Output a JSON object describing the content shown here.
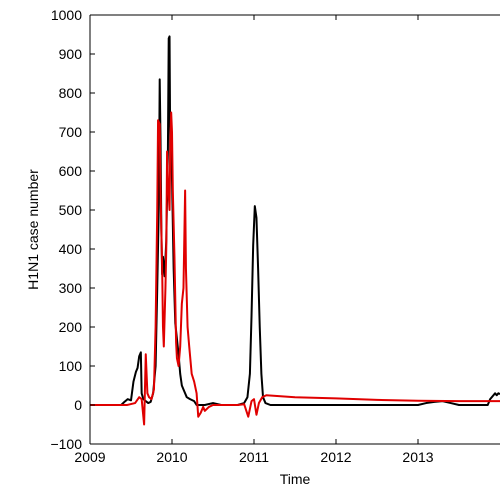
{
  "chart_data": {
    "type": "line",
    "title": "",
    "xlabel": "Time",
    "ylabel": "H1N1 case number",
    "xlim": [
      2009,
      2014
    ],
    "ylim": [
      -100,
      1000
    ],
    "x_ticks": [
      2009,
      2010,
      2011,
      2012,
      2013
    ],
    "y_ticks": [
      -100,
      0,
      100,
      200,
      300,
      400,
      500,
      600,
      700,
      800,
      900,
      1000
    ],
    "x_tick_labels": [
      "2009",
      "2010",
      "2011",
      "2012",
      "2013"
    ],
    "y_tick_labels": [
      "−100",
      "0",
      "100",
      "200",
      "300",
      "400",
      "500",
      "600",
      "700",
      "800",
      "900",
      "1000"
    ],
    "grid": false,
    "series": [
      {
        "color": "#000000",
        "points": [
          [
            2009.0,
            0
          ],
          [
            2009.38,
            0
          ],
          [
            2009.42,
            8
          ],
          [
            2009.46,
            15
          ],
          [
            2009.5,
            12
          ],
          [
            2009.53,
            60
          ],
          [
            2009.56,
            85
          ],
          [
            2009.58,
            95
          ],
          [
            2009.6,
            125
          ],
          [
            2009.62,
            135
          ],
          [
            2009.63,
            30
          ],
          [
            2009.65,
            15
          ],
          [
            2009.68,
            10
          ],
          [
            2009.71,
            5
          ],
          [
            2009.74,
            8
          ],
          [
            2009.77,
            30
          ],
          [
            2009.8,
            100
          ],
          [
            2009.82,
            300
          ],
          [
            2009.84,
            520
          ],
          [
            2009.85,
            835
          ],
          [
            2009.86,
            680
          ],
          [
            2009.87,
            450
          ],
          [
            2009.88,
            335
          ],
          [
            2009.89,
            380
          ],
          [
            2009.91,
            330
          ],
          [
            2009.93,
            420
          ],
          [
            2009.95,
            650
          ],
          [
            2009.96,
            940
          ],
          [
            2009.97,
            945
          ],
          [
            2009.98,
            600
          ],
          [
            2009.99,
            660
          ],
          [
            2010.0,
            580
          ],
          [
            2010.02,
            350
          ],
          [
            2010.04,
            210
          ],
          [
            2010.06,
            170
          ],
          [
            2010.08,
            130
          ],
          [
            2010.1,
            80
          ],
          [
            2010.12,
            50
          ],
          [
            2010.15,
            35
          ],
          [
            2010.18,
            20
          ],
          [
            2010.22,
            15
          ],
          [
            2010.27,
            10
          ],
          [
            2010.3,
            0
          ],
          [
            2010.4,
            0
          ],
          [
            2010.5,
            5
          ],
          [
            2010.6,
            0
          ],
          [
            2010.8,
            0
          ],
          [
            2010.88,
            5
          ],
          [
            2010.92,
            20
          ],
          [
            2010.95,
            80
          ],
          [
            2010.97,
            230
          ],
          [
            2010.99,
            410
          ],
          [
            2011.01,
            510
          ],
          [
            2011.03,
            480
          ],
          [
            2011.05,
            350
          ],
          [
            2011.07,
            200
          ],
          [
            2011.09,
            80
          ],
          [
            2011.11,
            20
          ],
          [
            2011.14,
            5
          ],
          [
            2011.2,
            0
          ],
          [
            2013.0,
            0
          ],
          [
            2013.1,
            5
          ],
          [
            2013.2,
            8
          ],
          [
            2013.3,
            10
          ],
          [
            2013.4,
            5
          ],
          [
            2013.5,
            0
          ],
          [
            2013.85,
            0
          ],
          [
            2013.88,
            15
          ],
          [
            2013.92,
            25
          ],
          [
            2013.94,
            30
          ],
          [
            2013.96,
            25
          ],
          [
            2013.98,
            30
          ],
          [
            2014.0,
            28
          ]
        ]
      },
      {
        "color": "#e00000",
        "points": [
          [
            2009.0,
            0
          ],
          [
            2009.45,
            0
          ],
          [
            2009.55,
            5
          ],
          [
            2009.6,
            20
          ],
          [
            2009.63,
            15
          ],
          [
            2009.66,
            -50
          ],
          [
            2009.68,
            130
          ],
          [
            2009.7,
            30
          ],
          [
            2009.72,
            20
          ],
          [
            2009.75,
            15
          ],
          [
            2009.78,
            40
          ],
          [
            2009.8,
            200
          ],
          [
            2009.82,
            500
          ],
          [
            2009.83,
            730
          ],
          [
            2009.85,
            720
          ],
          [
            2009.86,
            550
          ],
          [
            2009.88,
            350
          ],
          [
            2009.89,
            200
          ],
          [
            2009.9,
            150
          ],
          [
            2009.92,
            300
          ],
          [
            2009.93,
            400
          ],
          [
            2009.94,
            650
          ],
          [
            2009.95,
            580
          ],
          [
            2009.97,
            500
          ],
          [
            2009.98,
            680
          ],
          [
            2009.99,
            750
          ],
          [
            2010.0,
            700
          ],
          [
            2010.01,
            550
          ],
          [
            2010.03,
            380
          ],
          [
            2010.05,
            160
          ],
          [
            2010.06,
            120
          ],
          [
            2010.08,
            100
          ],
          [
            2010.1,
            150
          ],
          [
            2010.12,
            260
          ],
          [
            2010.14,
            300
          ],
          [
            2010.16,
            550
          ],
          [
            2010.17,
            350
          ],
          [
            2010.19,
            200
          ],
          [
            2010.21,
            150
          ],
          [
            2010.24,
            80
          ],
          [
            2010.27,
            60
          ],
          [
            2010.3,
            30
          ],
          [
            2010.32,
            -30
          ],
          [
            2010.35,
            -20
          ],
          [
            2010.38,
            -5
          ],
          [
            2010.4,
            -15
          ],
          [
            2010.45,
            -5
          ],
          [
            2010.5,
            0
          ],
          [
            2010.65,
            0
          ],
          [
            2010.8,
            0
          ],
          [
            2010.88,
            2
          ],
          [
            2010.93,
            -30
          ],
          [
            2010.97,
            10
          ],
          [
            2011.0,
            15
          ],
          [
            2011.03,
            -25
          ],
          [
            2011.06,
            5
          ],
          [
            2011.1,
            20
          ],
          [
            2011.15,
            25
          ],
          [
            2011.5,
            20
          ],
          [
            2012.0,
            17
          ],
          [
            2012.5,
            13
          ],
          [
            2013.0,
            11
          ],
          [
            2013.5,
            10
          ],
          [
            2014.0,
            10
          ]
        ]
      }
    ]
  }
}
